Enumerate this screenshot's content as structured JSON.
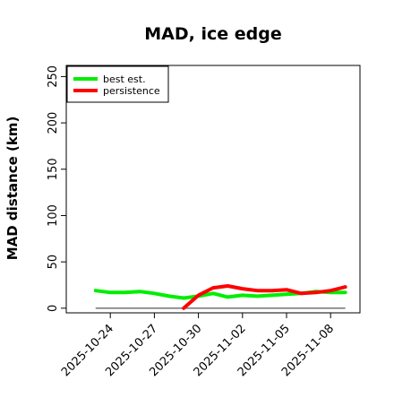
{
  "chart_data": {
    "type": "line",
    "title": "MAD, ice edge",
    "xlabel": "",
    "ylabel": "MAD distance (km)",
    "x_axis_type": "date",
    "xlim": [
      "2025-10-21",
      "2025-11-10"
    ],
    "ylim": [
      -5,
      262
    ],
    "x_ticks": [
      "2025-10-24",
      "2025-10-27",
      "2025-10-30",
      "2025-11-02",
      "2025-11-05",
      "2025-11-08"
    ],
    "y_ticks": [
      0,
      50,
      100,
      150,
      200,
      250
    ],
    "grid": false,
    "legend_position": "top-left",
    "reference_line": {
      "y": 0,
      "color": "#666666"
    },
    "series": [
      {
        "name": "best est.",
        "color": "#00ee00",
        "x": [
          "2025-10-23",
          "2025-10-24",
          "2025-10-25",
          "2025-10-26",
          "2025-10-27",
          "2025-10-28",
          "2025-10-29",
          "2025-10-30",
          "2025-10-31",
          "2025-11-01",
          "2025-11-02",
          "2025-11-03",
          "2025-11-04",
          "2025-11-05",
          "2025-11-06",
          "2025-11-07",
          "2025-11-08",
          "2025-11-09"
        ],
        "values": [
          19,
          17,
          17,
          18,
          16,
          13,
          11,
          13,
          16,
          12,
          14,
          13,
          14,
          15,
          16,
          18,
          17,
          17
        ]
      },
      {
        "name": "persistence",
        "color": "#ff0000",
        "x": [
          "2025-10-29",
          "2025-10-30",
          "2025-10-31",
          "2025-11-01",
          "2025-11-02",
          "2025-11-03",
          "2025-11-04",
          "2025-11-05",
          "2025-11-06",
          "2025-11-07",
          "2025-11-08",
          "2025-11-09"
        ],
        "values": [
          0,
          14,
          22,
          24,
          21,
          19,
          19,
          20,
          16,
          17,
          19,
          23
        ]
      }
    ]
  }
}
